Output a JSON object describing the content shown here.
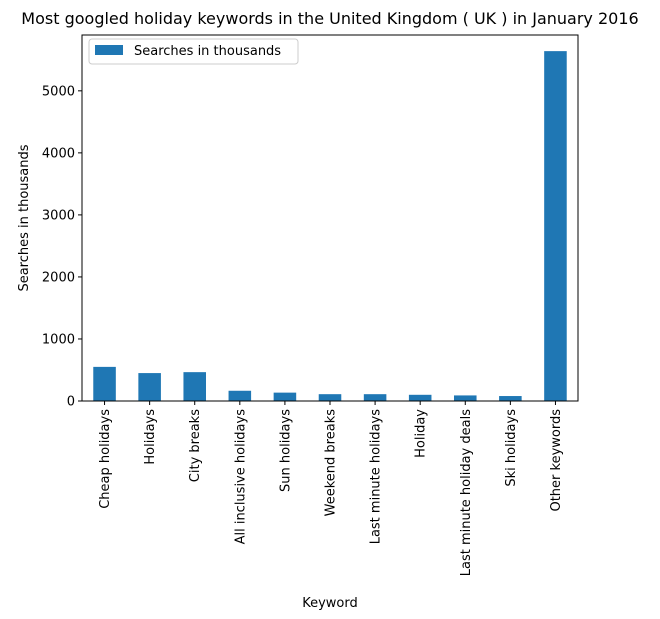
{
  "chart_data": {
    "type": "bar",
    "title": "Most googled holiday keywords in the United Kingdom ( UK ) in January 2016",
    "xlabel": "Keyword",
    "ylabel": "Searches in thousands",
    "categories": [
      "Cheap holidays",
      "Holidays",
      "City breaks",
      "All inclusive holidays",
      "Sun holidays",
      "Weekend breaks",
      "Last minute holidays",
      "Holiday",
      "Last minute holiday deals",
      "Ski holidays",
      "Other keywords"
    ],
    "series": [
      {
        "name": "Searches in thousands",
        "values": [
          550,
          450,
          465,
          165,
          135,
          110,
          110,
          100,
          90,
          80,
          5640
        ]
      }
    ],
    "ylim": [
      0,
      5900
    ],
    "yticks": [
      0,
      1000,
      2000,
      3000,
      4000,
      5000
    ],
    "grid": false,
    "legend_position": "top-left",
    "bar_color": "#1f77b4"
  }
}
